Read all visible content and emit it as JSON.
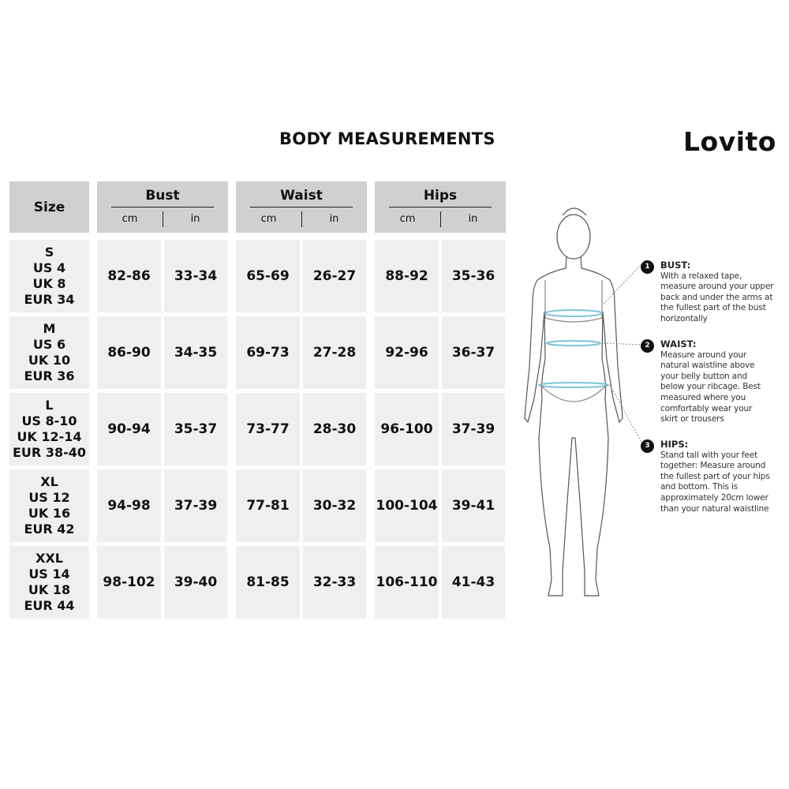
{
  "title": "BODY MEASUREMENTS",
  "brand": "Lovito",
  "header": {
    "size": "Size",
    "groups": [
      "Bust",
      "Waist",
      "Hips"
    ],
    "units": [
      "cm",
      "in"
    ]
  },
  "rows": [
    {
      "size": [
        "S",
        "US 4",
        "UK 8",
        "EUR 34"
      ],
      "values": [
        "82-86",
        "33-34",
        "65-69",
        "26-27",
        "88-92",
        "35-36"
      ]
    },
    {
      "size": [
        "M",
        "US 6",
        "UK 10",
        "EUR 36"
      ],
      "values": [
        "86-90",
        "34-35",
        "69-73",
        "27-28",
        "92-96",
        "36-37"
      ]
    },
    {
      "size": [
        "L",
        "US 8-10",
        "UK 12-14",
        "EUR 38-40"
      ],
      "values": [
        "90-94",
        "35-37",
        "73-77",
        "28-30",
        "96-100",
        "37-39"
      ]
    },
    {
      "size": [
        "XL",
        "US 12",
        "UK 16",
        "EUR 42"
      ],
      "values": [
        "94-98",
        "37-39",
        "77-81",
        "30-32",
        "100-104",
        "39-41"
      ]
    },
    {
      "size": [
        "XXL",
        "US 14",
        "UK 18",
        "EUR 44"
      ],
      "values": [
        "98-102",
        "39-40",
        "81-85",
        "32-33",
        "106-110",
        "41-43"
      ]
    }
  ],
  "guide": [
    {
      "num": "1",
      "label": "BUST:",
      "text": "With a relaxed tape, measure around your upper back and under the arms at the fullest part of the bust horizontally"
    },
    {
      "num": "2",
      "label": "WAIST:",
      "text": "Measure around your natural waistline above your belly button and below your ribcage. Best measured where you comfortably wear your skirt or trousers"
    },
    {
      "num": "3",
      "label": "HIPS:",
      "text": "Stand tall with your feet together: Measure around the fullest part of your hips and bottom. This is approximately 20cm lower than your natural waistline"
    }
  ],
  "colors": {
    "header_bg": "#d0d0d0",
    "cell_bg": "#efefef",
    "tape": "#7fc6d6"
  }
}
